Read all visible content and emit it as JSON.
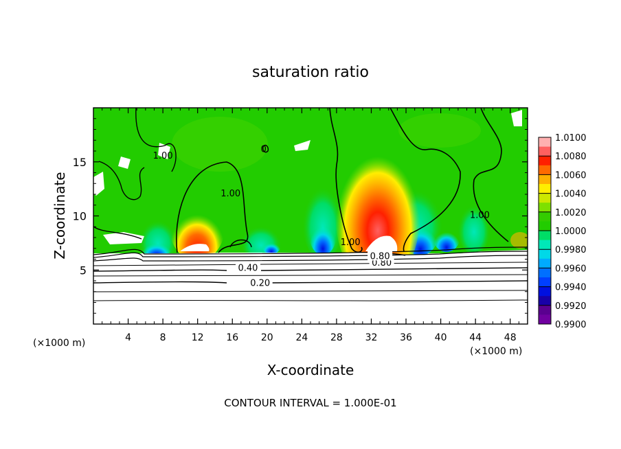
{
  "chart_data": {
    "type": "heatmap",
    "title": "saturation ratio",
    "xlabel": "X-coordinate",
    "ylabel": "Z-coordinate",
    "x_units_left": "(×1000 m)",
    "x_units_right": "(×1000 m)",
    "xlim": [
      0,
      50
    ],
    "ylim": [
      0,
      20
    ],
    "x_ticks": [
      4,
      8,
      12,
      16,
      20,
      24,
      28,
      32,
      36,
      40,
      44,
      48
    ],
    "x_tick_labels": [
      "4",
      "8",
      "12",
      "16",
      "20",
      "24",
      "28",
      "32",
      "36",
      "40",
      "44",
      "48"
    ],
    "y_ticks": [
      5,
      10,
      15
    ],
    "y_tick_labels": [
      "5",
      "10",
      "15"
    ],
    "footer": "CONTOUR INTERVAL = 1.000E-01",
    "colorbar": {
      "levels": [
        "1.0100",
        "1.0080",
        "1.0060",
        "1.0040",
        "1.0020",
        "1.0000",
        "0.9980",
        "0.9960",
        "0.9940",
        "0.9920",
        "0.9900"
      ],
      "colors": [
        "#ffb0b0",
        "#ff6060",
        "#ff2000",
        "#ff6a00",
        "#ffb000",
        "#ffee00",
        "#cce800",
        "#7de000",
        "#33cc00",
        "#22cc00",
        "#00dd66",
        "#00e8b8",
        "#00d8e8",
        "#00aaff",
        "#0070ff",
        "#0040ff",
        "#0010e0",
        "#1800a8",
        "#5a0090",
        "#7000a0"
      ]
    },
    "contour_labels": [
      {
        "text": "0.20",
        "x": 19.2,
        "y": 3.7
      },
      {
        "text": "0.40",
        "x": 17.8,
        "y": 5.1
      },
      {
        "text": "0.80",
        "x": 33.2,
        "y": 5.6
      },
      {
        "text": "0.80",
        "x": 33.0,
        "y": 6.2
      },
      {
        "text": "1.00",
        "x": 15.8,
        "y": 12.0
      },
      {
        "text": "1.00",
        "x": 29.6,
        "y": 7.5
      },
      {
        "text": "1.00",
        "x": 44.5,
        "y": 10.0
      },
      {
        "text": "1.00",
        "x": 8.0,
        "y": 15.5
      },
      {
        "text": "0",
        "x": 19.6,
        "y": 16.1
      }
    ]
  }
}
